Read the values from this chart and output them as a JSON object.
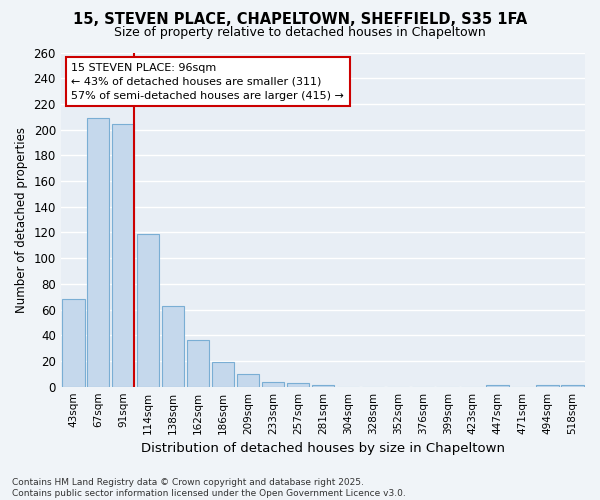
{
  "title1": "15, STEVEN PLACE, CHAPELTOWN, SHEFFIELD, S35 1FA",
  "title2": "Size of property relative to detached houses in Chapeltown",
  "xlabel": "Distribution of detached houses by size in Chapeltown",
  "ylabel": "Number of detached properties",
  "categories": [
    "43sqm",
    "67sqm",
    "91sqm",
    "114sqm",
    "138sqm",
    "162sqm",
    "186sqm",
    "209sqm",
    "233sqm",
    "257sqm",
    "281sqm",
    "304sqm",
    "328sqm",
    "352sqm",
    "376sqm",
    "399sqm",
    "423sqm",
    "447sqm",
    "471sqm",
    "494sqm",
    "518sqm"
  ],
  "values": [
    68,
    209,
    204,
    119,
    63,
    36,
    19,
    10,
    4,
    3,
    1,
    0,
    0,
    0,
    0,
    0,
    0,
    1,
    0,
    1,
    1
  ],
  "bar_color": "#c5d8ec",
  "bar_edge_color": "#7aaed4",
  "vline_color": "#cc0000",
  "ylim": [
    0,
    260
  ],
  "yticks": [
    0,
    20,
    40,
    60,
    80,
    100,
    120,
    140,
    160,
    180,
    200,
    220,
    240,
    260
  ],
  "annotation_text": "15 STEVEN PLACE: 96sqm\n← 43% of detached houses are smaller (311)\n57% of semi-detached houses are larger (415) →",
  "annotation_box_color": "#ffffff",
  "annotation_box_edge_color": "#cc0000",
  "footer": "Contains HM Land Registry data © Crown copyright and database right 2025.\nContains public sector information licensed under the Open Government Licence v3.0.",
  "bg_color": "#f0f4f8",
  "plot_bg_color": "#e8eef5"
}
